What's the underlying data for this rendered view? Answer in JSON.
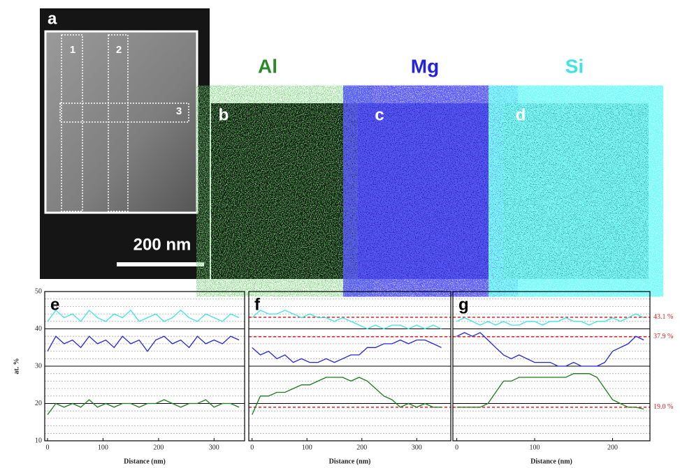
{
  "figure": {
    "panel_a": {
      "label": "a",
      "regions": [
        "1",
        "2",
        "3"
      ],
      "scale_bar": "200 nm"
    },
    "maps": [
      {
        "element": "Al",
        "label": "b",
        "color": "#2a8a2a"
      },
      {
        "element": "Mg",
        "label": "c",
        "color": "#2323d8"
      },
      {
        "element": "Si",
        "label": "d",
        "color": "#3fe3e3"
      }
    ]
  },
  "chart_data": [
    {
      "type": "line",
      "panel_label": "e",
      "ylabel": "at. %",
      "xlabel": "Distance (nm)",
      "xlim": [
        -5,
        355
      ],
      "xticks": [
        0,
        100,
        200,
        300
      ],
      "ylim": [
        10,
        50
      ],
      "yticks": [
        10,
        20,
        30,
        40,
        50
      ],
      "x": [
        0,
        15,
        30,
        45,
        60,
        75,
        90,
        105,
        120,
        135,
        150,
        165,
        180,
        195,
        210,
        225,
        240,
        255,
        270,
        285,
        300,
        315,
        330,
        345
      ],
      "series": [
        {
          "color": "#3fe3e3",
          "values": [
            42,
            45,
            43,
            44,
            42,
            45,
            43,
            42,
            44,
            43,
            45,
            42,
            43,
            44,
            42,
            43,
            45,
            43,
            42,
            44,
            43,
            42,
            44,
            43
          ]
        },
        {
          "color": "#2323d8",
          "values": [
            34,
            38,
            36,
            37,
            35,
            38,
            36,
            37,
            35,
            38,
            36,
            37,
            34,
            37,
            38,
            36,
            37,
            35,
            38,
            36,
            37,
            36,
            38,
            37
          ]
        },
        {
          "color": "#1a7a1a",
          "values": [
            17,
            20,
            19,
            20,
            19,
            21,
            19,
            20,
            19,
            20,
            20,
            19,
            20,
            20,
            21,
            20,
            19,
            20,
            20,
            21,
            19,
            20,
            20,
            19
          ]
        }
      ]
    },
    {
      "type": "line",
      "panel_label": "f",
      "xlabel": "Distance (nm)",
      "xlim": [
        -6,
        362
      ],
      "xticks": [
        0,
        100,
        200,
        300
      ],
      "ylim": [
        10,
        50
      ],
      "reference_lines": [
        43.1,
        37.9,
        19.0
      ],
      "x": [
        0,
        15,
        30,
        45,
        60,
        75,
        90,
        105,
        120,
        135,
        150,
        165,
        180,
        195,
        210,
        225,
        240,
        255,
        270,
        285,
        300,
        315,
        330,
        345
      ],
      "series": [
        {
          "color": "#3fe3e3",
          "values": [
            43,
            45,
            44,
            44,
            45,
            44,
            43,
            44,
            43,
            43,
            42,
            43,
            42,
            41,
            40,
            41,
            40,
            41,
            41,
            40,
            41,
            40,
            41,
            40
          ]
        },
        {
          "color": "#2323d8",
          "values": [
            35,
            33,
            34,
            32,
            33,
            31,
            32,
            31,
            31,
            32,
            31,
            32,
            33,
            33,
            35,
            35,
            36,
            36,
            37,
            36,
            37,
            37,
            36,
            35
          ]
        },
        {
          "color": "#1a7a1a",
          "values": [
            17,
            22,
            22,
            23,
            23,
            24,
            25,
            25,
            26,
            27,
            27,
            27,
            26,
            27,
            26,
            24,
            22,
            21,
            19,
            20,
            19,
            20,
            19,
            19
          ]
        }
      ]
    },
    {
      "type": "line",
      "panel_label": "g",
      "xlabel": "Distance (nm)",
      "xlim": [
        -5,
        248
      ],
      "xticks": [
        0,
        100,
        200
      ],
      "ylim": [
        10,
        50
      ],
      "reference_lines": [
        {
          "value": 43.1,
          "label": "43.1 %"
        },
        {
          "value": 37.9,
          "label": "37.9 %"
        },
        {
          "value": 19.0,
          "label": "19.0 %"
        }
      ],
      "x": [
        0,
        10,
        20,
        30,
        40,
        50,
        60,
        70,
        80,
        90,
        100,
        110,
        120,
        130,
        140,
        150,
        160,
        170,
        180,
        190,
        200,
        210,
        220,
        230,
        240
      ],
      "series": [
        {
          "color": "#3fe3e3",
          "values": [
            42,
            43,
            42,
            41,
            42,
            41,
            42,
            41,
            41,
            42,
            42,
            41,
            42,
            42,
            43,
            42,
            42,
            41,
            42,
            42,
            43,
            42,
            43,
            44,
            43
          ]
        },
        {
          "color": "#2323d8",
          "values": [
            38,
            39,
            38,
            39,
            37,
            35,
            33,
            32,
            33,
            32,
            31,
            31,
            31,
            30,
            30,
            31,
            30,
            30,
            30,
            31,
            34,
            35,
            36,
            38,
            37
          ]
        },
        {
          "color": "#1a7a1a",
          "values": [
            19,
            19,
            19,
            19,
            20,
            23,
            26,
            26,
            27,
            27,
            27,
            27,
            27,
            27,
            27,
            28,
            28,
            28,
            27,
            24,
            21,
            20,
            19,
            19,
            18.5
          ]
        }
      ]
    }
  ]
}
